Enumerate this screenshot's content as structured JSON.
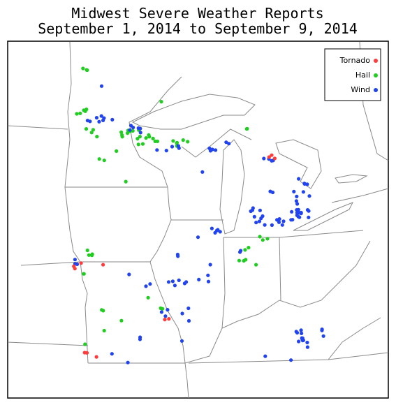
{
  "header": {
    "title": "Midwest Severe Weather Reports",
    "subtitle": "September 1, 2014 to September 9, 2014"
  },
  "legend": [
    {
      "label": "Tornado",
      "color": "#ff3b3b"
    },
    {
      "label": "Hail",
      "color": "#22cc22"
    },
    {
      "label": "Wind",
      "color": "#2244ee"
    }
  ]
}
